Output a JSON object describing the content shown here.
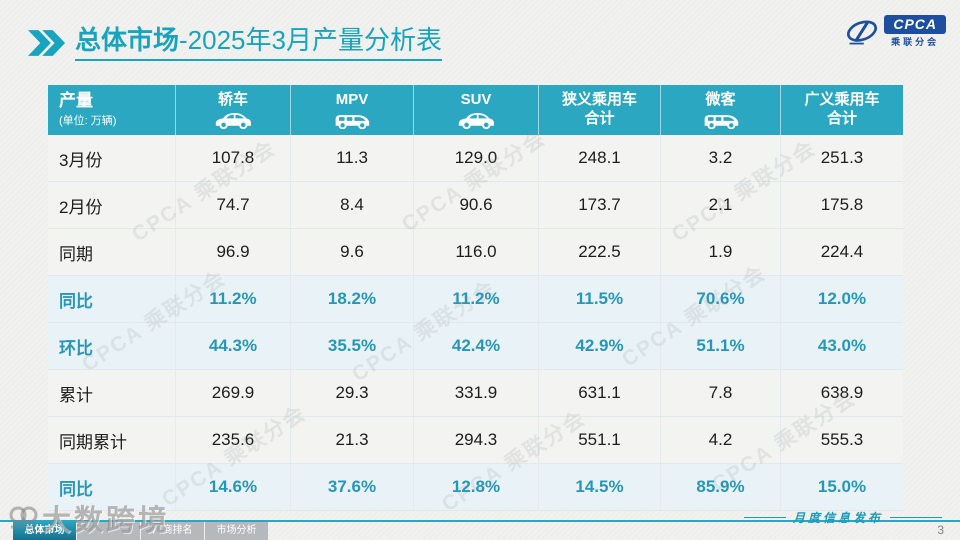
{
  "slide": {
    "title_bold": "总体市场",
    "title_rest": "-2025年3月产量分析表",
    "page_number": "3",
    "footer_caption": "月度信息发布",
    "watermark_text": "大数跨境",
    "tile_watermark": "CPCA 乘联分会"
  },
  "logo": {
    "text": "CPCA",
    "subtext": "乘联分会"
  },
  "footer": {
    "tabs": [
      {
        "label": "总体市场",
        "active": true
      },
      {
        "label": "",
        "active": false
      },
      {
        "label": "厂商排名",
        "active": false
      },
      {
        "label": "市场分析",
        "active": false
      }
    ]
  },
  "colors": {
    "accent": "#18A3BE",
    "table_header_bg": "#2BA7C1",
    "percent_row_bg": "#E9F2F7",
    "percent_text": "#2697B8",
    "logo_blue": "#1E4E9E"
  },
  "chart_data": {
    "type": "table",
    "title": "总体市场-2025年3月产量分析表",
    "corner": {
      "title": "产量",
      "unit": "(单位: 万辆)"
    },
    "columns": [
      {
        "label": "轿车",
        "label2": "",
        "icon": "sedan-icon"
      },
      {
        "label": "MPV",
        "label2": "",
        "icon": "mpv-icon"
      },
      {
        "label": "SUV",
        "label2": "",
        "icon": "suv-icon"
      },
      {
        "label": "狭义乘用车",
        "label2": "合计",
        "icon": ""
      },
      {
        "label": "微客",
        "label2": "",
        "icon": "microvan-icon"
      },
      {
        "label": "广义乘用车",
        "label2": "合计",
        "icon": ""
      }
    ],
    "rows": [
      {
        "label": "3月份",
        "type": "normal",
        "values": [
          "107.8",
          "11.3",
          "129.0",
          "248.1",
          "3.2",
          "251.3"
        ]
      },
      {
        "label": "2月份",
        "type": "normal",
        "values": [
          "74.7",
          "8.4",
          "90.6",
          "173.7",
          "2.1",
          "175.8"
        ]
      },
      {
        "label": "同期",
        "type": "normal",
        "values": [
          "96.9",
          "9.6",
          "116.0",
          "222.5",
          "1.9",
          "224.4"
        ]
      },
      {
        "label": "同比",
        "type": "percent",
        "values": [
          "11.2%",
          "18.2%",
          "11.2%",
          "11.5%",
          "70.6%",
          "12.0%"
        ]
      },
      {
        "label": "环比",
        "type": "percent",
        "values": [
          "44.3%",
          "35.5%",
          "42.4%",
          "42.9%",
          "51.1%",
          "43.0%"
        ]
      },
      {
        "label": "累计",
        "type": "normal",
        "values": [
          "269.9",
          "29.3",
          "331.9",
          "631.1",
          "7.8",
          "638.9"
        ]
      },
      {
        "label": "同期累计",
        "type": "normal",
        "values": [
          "235.6",
          "21.3",
          "294.3",
          "551.1",
          "4.2",
          "555.3"
        ]
      },
      {
        "label": "同比",
        "type": "percent",
        "values": [
          "14.6%",
          "37.6%",
          "12.8%",
          "14.5%",
          "85.9%",
          "15.0%"
        ]
      }
    ]
  }
}
